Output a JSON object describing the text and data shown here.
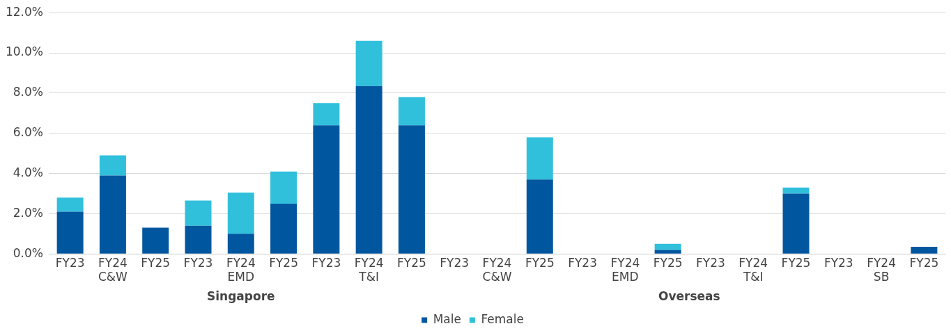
{
  "chart_data": {
    "type": "bar",
    "stacked": true,
    "categories": [
      "FY23",
      "FY24\nC&W",
      "FY25",
      "FY23",
      "FY24\nEMD",
      "FY25",
      "FY23",
      "FY24\nT&I",
      "FY25",
      "FY23",
      "FY24\nC&W",
      "FY25",
      "FY23",
      "FY24\nEMD",
      "FY25",
      "FY23",
      "FY24\nT&I",
      "FY25",
      "FY23",
      "FY24\nSB",
      "FY25"
    ],
    "series": [
      {
        "name": "Male",
        "color": "#0057a0",
        "values": [
          2.1,
          3.9,
          1.3,
          1.4,
          1.0,
          2.5,
          6.4,
          8.35,
          6.4,
          0,
          0,
          3.7,
          0,
          0,
          0.2,
          0,
          0,
          3.0,
          0,
          0,
          0.35
        ]
      },
      {
        "name": "Female",
        "color": "#30c0dc",
        "values": [
          0.7,
          1.0,
          0,
          1.25,
          2.05,
          1.6,
          1.1,
          2.25,
          1.4,
          0,
          0,
          2.1,
          0,
          0,
          0.3,
          0,
          0,
          0.3,
          0,
          0,
          0
        ]
      }
    ],
    "ylim": [
      0,
      12
    ],
    "yticks": [
      {
        "value": 0,
        "label": "0.0%"
      },
      {
        "value": 2,
        "label": "2.0%"
      },
      {
        "value": 4,
        "label": "4.0%"
      },
      {
        "value": 6,
        "label": "6.0%"
      },
      {
        "value": 8,
        "label": "8.0%"
      },
      {
        "value": 10,
        "label": "10.0%"
      },
      {
        "value": 12,
        "label": "12.0%"
      }
    ],
    "grid": "y",
    "legend": "bottom",
    "annotations": [
      "Singapore",
      "Overseas"
    ]
  }
}
